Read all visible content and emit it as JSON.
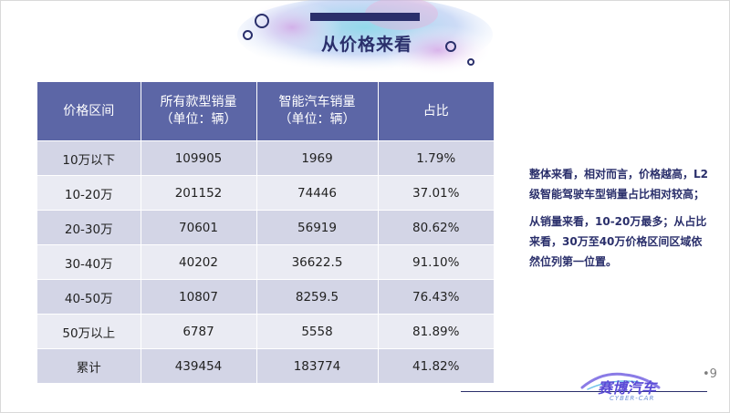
{
  "title": "从价格来看",
  "table": {
    "headers": [
      [
        "价格区间",
        ""
      ],
      [
        "所有款型销量",
        "（单位：辆）"
      ],
      [
        "智能汽车销量",
        "（单位：辆）"
      ],
      [
        "占比",
        ""
      ]
    ],
    "rows": [
      [
        "10万以下",
        "109905",
        "1969",
        "1.79%"
      ],
      [
        "10-20万",
        "201152",
        "74446",
        "37.01%"
      ],
      [
        "20-30万",
        "70601",
        "56919",
        "80.62%"
      ],
      [
        "30-40万",
        "40202",
        "36622.5",
        "91.10%"
      ],
      [
        "40-50万",
        "10807",
        "8259.5",
        "76.43%"
      ],
      [
        "50万以上",
        "6787",
        "5558",
        "81.89%"
      ],
      [
        "累计",
        "439454",
        "183774",
        "41.82%"
      ]
    ]
  },
  "notes": [
    "整体来看，相对而言，价格越高，L2级智能驾驶车型销量占比相对较高；",
    "从销量来看，10-20万最多；从占比来看，30万至40万价格区间区域依然位列第一位置。"
  ],
  "page_number": "•9",
  "logo": {
    "text": "赛博汽车",
    "sub": "CYBER-CAR"
  },
  "colors": {
    "header_bg": "#5c66a6",
    "row_dark": "#d3d5e6",
    "row_light": "#eaebf3",
    "accent": "#2a2f6b"
  }
}
